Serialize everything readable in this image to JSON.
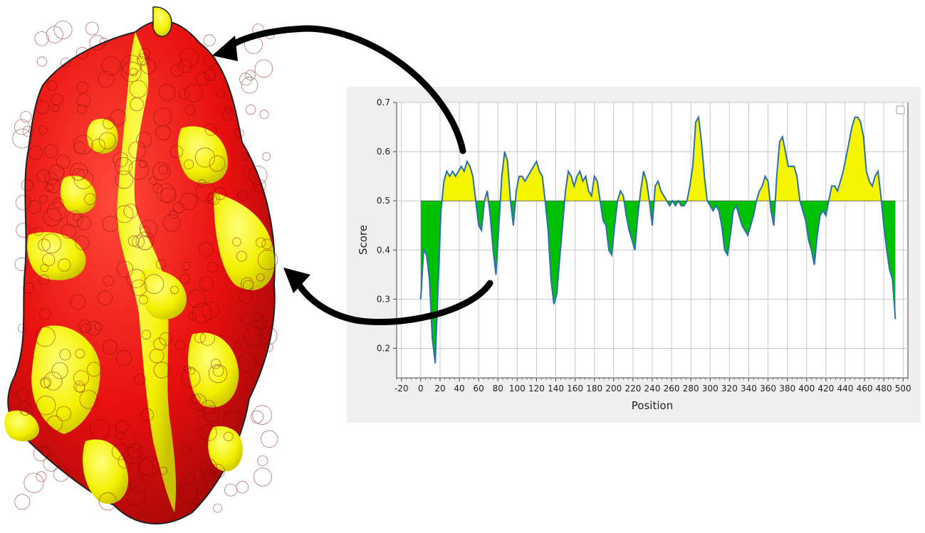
{
  "figure": {
    "protein_colors": {
      "exposed": "#e8100f",
      "antigenic": "#f3f000",
      "outline": "#202020"
    }
  },
  "chart_data": {
    "type": "area",
    "title": "",
    "xlabel": "Position",
    "ylabel": "Score",
    "xlim": [
      -25,
      505
    ],
    "ylim": [
      0.14,
      0.7
    ],
    "threshold": 0.5,
    "xticks": [
      -20,
      0,
      20,
      40,
      60,
      80,
      100,
      120,
      140,
      160,
      180,
      200,
      220,
      240,
      260,
      280,
      300,
      320,
      340,
      360,
      380,
      400,
      420,
      440,
      460,
      480,
      500
    ],
    "yticks": [
      0.2,
      0.3,
      0.4,
      0.5,
      0.6,
      0.7
    ],
    "grid": true,
    "legend": "top-right, empty",
    "colors": {
      "line": "#2b6fb3",
      "above": "#f5f500",
      "below": "#00c000",
      "panel": "#efefef",
      "grid": "#c8c8c8"
    },
    "x": [
      0,
      3,
      6,
      9,
      12,
      15,
      18,
      21,
      24,
      27,
      30,
      33,
      36,
      39,
      42,
      45,
      48,
      51,
      54,
      57,
      60,
      63,
      66,
      69,
      72,
      75,
      78,
      81,
      84,
      87,
      90,
      93,
      96,
      99,
      102,
      105,
      108,
      111,
      114,
      117,
      120,
      123,
      126,
      129,
      132,
      135,
      138,
      141,
      144,
      147,
      150,
      153,
      156,
      159,
      162,
      165,
      168,
      171,
      174,
      177,
      180,
      183,
      186,
      189,
      192,
      195,
      198,
      201,
      204,
      207,
      210,
      213,
      216,
      219,
      222,
      225,
      228,
      231,
      234,
      237,
      240,
      243,
      246,
      249,
      252,
      255,
      258,
      261,
      264,
      267,
      270,
      273,
      276,
      279,
      282,
      285,
      288,
      291,
      294,
      297,
      300,
      303,
      306,
      309,
      312,
      315,
      318,
      321,
      324,
      327,
      330,
      333,
      336,
      339,
      342,
      345,
      348,
      351,
      354,
      357,
      360,
      363,
      366,
      369,
      372,
      375,
      378,
      381,
      384,
      387,
      390,
      393,
      396,
      399,
      402,
      405,
      408,
      411,
      414,
      417,
      420,
      423,
      426,
      429,
      432,
      435,
      438,
      441,
      444,
      447,
      450,
      453,
      456,
      459,
      462,
      465,
      468,
      471,
      474,
      477,
      480,
      483,
      486,
      489,
      492
    ],
    "values": [
      0.3,
      0.4,
      0.39,
      0.34,
      0.22,
      0.17,
      0.33,
      0.48,
      0.54,
      0.56,
      0.55,
      0.56,
      0.55,
      0.56,
      0.57,
      0.56,
      0.58,
      0.57,
      0.55,
      0.5,
      0.45,
      0.44,
      0.5,
      0.52,
      0.47,
      0.4,
      0.35,
      0.45,
      0.55,
      0.6,
      0.58,
      0.5,
      0.45,
      0.52,
      0.55,
      0.55,
      0.54,
      0.55,
      0.56,
      0.57,
      0.58,
      0.56,
      0.55,
      0.5,
      0.44,
      0.34,
      0.29,
      0.31,
      0.38,
      0.45,
      0.52,
      0.56,
      0.55,
      0.53,
      0.55,
      0.56,
      0.54,
      0.55,
      0.52,
      0.51,
      0.55,
      0.54,
      0.5,
      0.46,
      0.45,
      0.4,
      0.39,
      0.45,
      0.5,
      0.52,
      0.51,
      0.47,
      0.44,
      0.42,
      0.4,
      0.47,
      0.52,
      0.56,
      0.54,
      0.5,
      0.45,
      0.53,
      0.54,
      0.52,
      0.51,
      0.5,
      0.49,
      0.5,
      0.49,
      0.5,
      0.49,
      0.49,
      0.5,
      0.53,
      0.57,
      0.66,
      0.67,
      0.62,
      0.55,
      0.5,
      0.49,
      0.48,
      0.49,
      0.48,
      0.45,
      0.4,
      0.39,
      0.43,
      0.48,
      0.49,
      0.47,
      0.45,
      0.44,
      0.43,
      0.45,
      0.47,
      0.5,
      0.52,
      0.53,
      0.55,
      0.54,
      0.48,
      0.45,
      0.55,
      0.62,
      0.63,
      0.6,
      0.57,
      0.57,
      0.57,
      0.55,
      0.5,
      0.48,
      0.46,
      0.42,
      0.4,
      0.37,
      0.43,
      0.47,
      0.48,
      0.47,
      0.5,
      0.53,
      0.53,
      0.52,
      0.54,
      0.56,
      0.59,
      0.62,
      0.65,
      0.67,
      0.67,
      0.66,
      0.63,
      0.56,
      0.54,
      0.53,
      0.55,
      0.56,
      0.51,
      0.45,
      0.4,
      0.36,
      0.34,
      0.26
    ]
  }
}
